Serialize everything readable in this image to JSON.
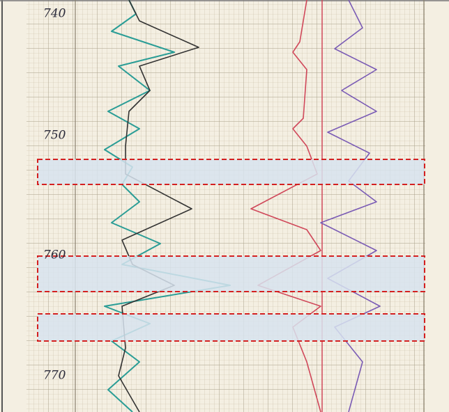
{
  "depth_labels": [
    "740",
    "750",
    "760",
    "770"
  ]
}
